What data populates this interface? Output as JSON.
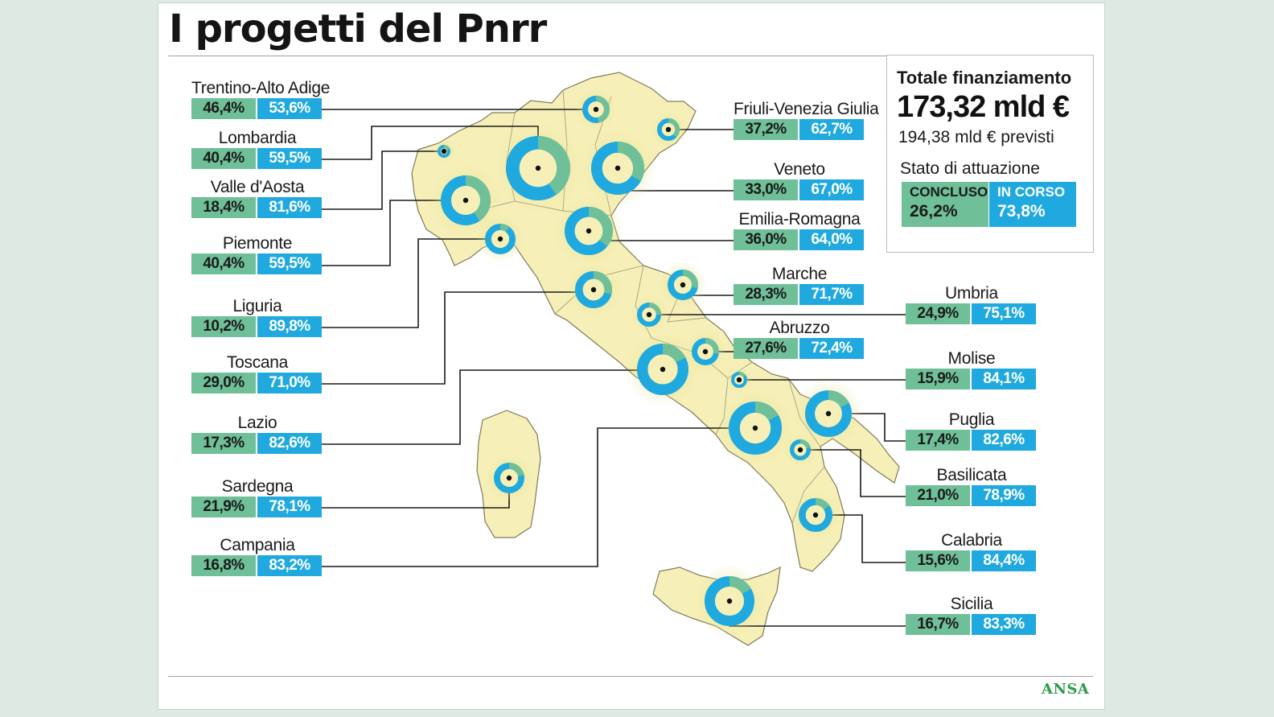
{
  "title": "I progetti del Pnrr",
  "total": {
    "label": "Totale finanziamento",
    "value": "173,32 mld €",
    "planned": "194,38 mld € previsti",
    "status_label": "Stato di attuazione",
    "legend": {
      "completed": "CONCLUSO",
      "in_progress": "IN CORSO",
      "completed_pct": "26,2%",
      "in_progress_pct": "73,8%"
    }
  },
  "colors": {
    "completed": "#6fbf98",
    "in_progress": "#1fa9de",
    "map_fill": "#f6f0b8",
    "leader": "#1a1a1a"
  },
  "regions": [
    {
      "name": "Trentino-Alto Adige",
      "completed": "46,4%",
      "in_progress": "53,6%",
      "completed_value": 46.4
    },
    {
      "name": "Lombardia",
      "completed": "40,4%",
      "in_progress": "59,5%",
      "completed_value": 40.4
    },
    {
      "name": "Valle d'Aosta",
      "completed": "18,4%",
      "in_progress": "81,6%",
      "completed_value": 18.4
    },
    {
      "name": "Piemonte",
      "completed": "40,4%",
      "in_progress": "59,5%",
      "completed_value": 40.4
    },
    {
      "name": "Liguria",
      "completed": "10,2%",
      "in_progress": "89,8%",
      "completed_value": 10.2
    },
    {
      "name": "Toscana",
      "completed": "29,0%",
      "in_progress": "71,0%",
      "completed_value": 29.0
    },
    {
      "name": "Lazio",
      "completed": "17,3%",
      "in_progress": "82,6%",
      "completed_value": 17.3
    },
    {
      "name": "Sardegna",
      "completed": "21,9%",
      "in_progress": "78,1%",
      "completed_value": 21.9
    },
    {
      "name": "Campania",
      "completed": "16,8%",
      "in_progress": "83,2%",
      "completed_value": 16.8
    },
    {
      "name": "Friuli-Venezia Giulia",
      "completed": "37,2%",
      "in_progress": "62,7%",
      "completed_value": 37.2
    },
    {
      "name": "Veneto",
      "completed": "33,0%",
      "in_progress": "67,0%",
      "completed_value": 33.0
    },
    {
      "name": "Emilia-Romagna",
      "completed": "36,0%",
      "in_progress": "64,0%",
      "completed_value": 36.0
    },
    {
      "name": "Marche",
      "completed": "28,3%",
      "in_progress": "71,7%",
      "completed_value": 28.3
    },
    {
      "name": "Abruzzo",
      "completed": "27,6%",
      "in_progress": "72,4%",
      "completed_value": 27.6
    },
    {
      "name": "Umbria",
      "completed": "24,9%",
      "in_progress": "75,1%",
      "completed_value": 24.9
    },
    {
      "name": "Molise",
      "completed": "15,9%",
      "in_progress": "84,1%",
      "completed_value": 15.9
    },
    {
      "name": "Puglia",
      "completed": "17,4%",
      "in_progress": "82,6%",
      "completed_value": 17.4
    },
    {
      "name": "Basilicata",
      "completed": "21,0%",
      "in_progress": "78,9%",
      "completed_value": 21.0
    },
    {
      "name": "Calabria",
      "completed": "15,6%",
      "in_progress": "84,4%",
      "completed_value": 15.6
    },
    {
      "name": "Sicilia",
      "completed": "16,7%",
      "in_progress": "83,3%",
      "completed_value": 16.7
    }
  ],
  "source": "ANSA"
}
